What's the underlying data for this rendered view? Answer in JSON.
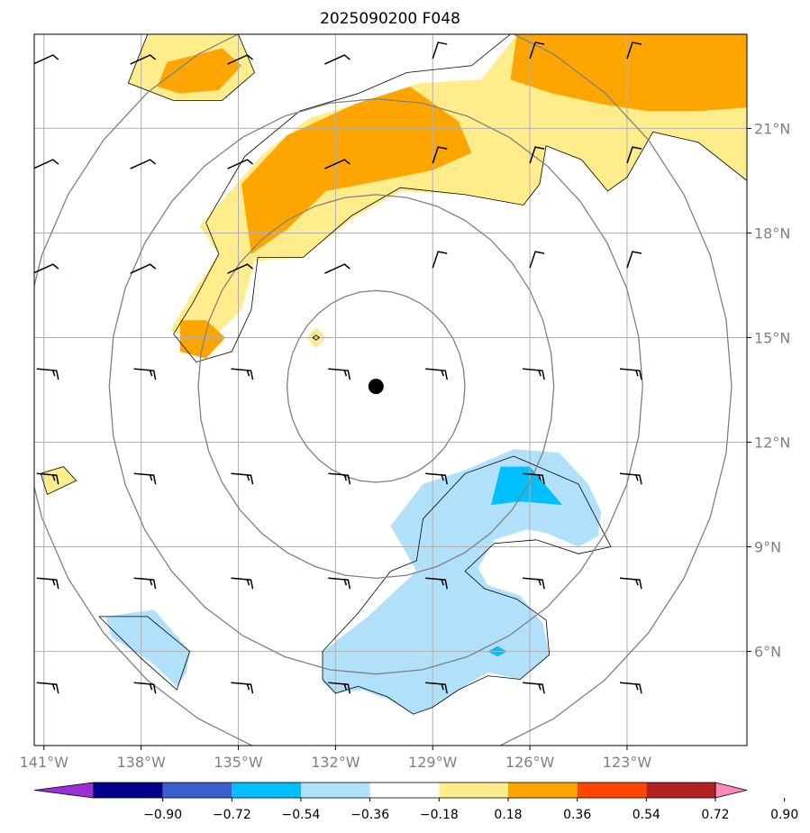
{
  "chart_data": {
    "type": "contour-map",
    "title": "2025090200 F048",
    "xlim": [
      -141.3,
      -119.3
    ],
    "ylim": [
      3.3,
      23.7
    ],
    "x_ticks": [
      {
        "value": -141,
        "label": "141°W"
      },
      {
        "value": -138,
        "label": "138°W"
      },
      {
        "value": -135,
        "label": "135°W"
      },
      {
        "value": -132,
        "label": "132°W"
      },
      {
        "value": -129,
        "label": "129°W"
      },
      {
        "value": -126,
        "label": "126°W"
      },
      {
        "value": -123,
        "label": "123°W"
      }
    ],
    "y_ticks": [
      {
        "value": 6,
        "label": "6°N"
      },
      {
        "value": 9,
        "label": "9°N"
      },
      {
        "value": 12,
        "label": "12°N"
      },
      {
        "value": 15,
        "label": "15°N"
      },
      {
        "value": 18,
        "label": "18°N"
      },
      {
        "value": 21,
        "label": "21°N"
      }
    ],
    "grid": true,
    "center": {
      "lon": -130.75,
      "lat": 13.6
    },
    "range_rings_deg": [
      2.75,
      5.5,
      8.25,
      11.0
    ],
    "colorbar": {
      "levels": [
        -0.9,
        -0.72,
        -0.54,
        -0.36,
        -0.18,
        0.18,
        0.36,
        0.54,
        0.72,
        0.9
      ],
      "labels": [
        "−0.90",
        "−0.72",
        "−0.54",
        "−0.36",
        "−0.18",
        "0.18",
        "0.36",
        "0.54",
        "0.72",
        "0.90"
      ],
      "colors": [
        "#9b30d9",
        "#00008b",
        "#3a5fcd",
        "#00bfff",
        "#b0e0fa",
        "#ffffff",
        "#ffec8b",
        "#ffa500",
        "#ff4500",
        "#b22222",
        "#ff88b8"
      ],
      "extend": "both"
    },
    "filled_regions": [
      {
        "level": 0.18,
        "color": "#ffec8b",
        "points": [
          [
            -137.8,
            23.7
          ],
          [
            -135.0,
            23.7
          ],
          [
            -134.5,
            22.6
          ],
          [
            -135.5,
            21.8
          ],
          [
            -137.0,
            21.8
          ],
          [
            -138.4,
            22.3
          ]
        ]
      },
      {
        "level": 0.36,
        "color": "#ffa500",
        "points": [
          [
            -137.2,
            22.9
          ],
          [
            -135.5,
            23.3
          ],
          [
            -134.9,
            22.8
          ],
          [
            -135.6,
            22.1
          ],
          [
            -136.8,
            22.0
          ],
          [
            -137.5,
            22.2
          ]
        ]
      },
      {
        "level": 0.18,
        "color": "#ffec8b",
        "points": [
          [
            -136.2,
            18.2
          ],
          [
            -134.2,
            20.3
          ],
          [
            -132.8,
            21.3
          ],
          [
            -131.0,
            21.8
          ],
          [
            -129.4,
            22.3
          ],
          [
            -127.5,
            22.4
          ],
          [
            -126.4,
            23.7
          ],
          [
            -119.3,
            23.7
          ],
          [
            -119.3,
            19.5
          ],
          [
            -120.8,
            20.6
          ],
          [
            -122.2,
            20.9
          ],
          [
            -123.0,
            19.6
          ],
          [
            -123.6,
            19.2
          ],
          [
            -124.4,
            20.1
          ],
          [
            -125.5,
            20.5
          ],
          [
            -125.7,
            19.4
          ],
          [
            -126.2,
            18.8
          ],
          [
            -128.0,
            19.1
          ],
          [
            -130.0,
            19.2
          ],
          [
            -131.5,
            18.4
          ],
          [
            -133.0,
            17.3
          ],
          [
            -134.5,
            17.2
          ],
          [
            -134.9,
            15.8
          ],
          [
            -136.0,
            14.8
          ],
          [
            -137.1,
            15.2
          ],
          [
            -136.4,
            16.3
          ],
          [
            -135.6,
            17.4
          ]
        ]
      },
      {
        "level": 0.36,
        "color": "#ffa500",
        "points": [
          [
            -134.9,
            19.4
          ],
          [
            -133.5,
            20.8
          ],
          [
            -131.4,
            21.7
          ],
          [
            -129.7,
            22.2
          ],
          [
            -128.2,
            21.2
          ],
          [
            -127.8,
            20.3
          ],
          [
            -129.0,
            19.8
          ],
          [
            -130.6,
            19.5
          ],
          [
            -132.3,
            19.2
          ],
          [
            -133.5,
            18.1
          ],
          [
            -134.6,
            17.4
          ]
        ]
      },
      {
        "level": 0.36,
        "color": "#ffa500",
        "points": [
          [
            -126.4,
            23.7
          ],
          [
            -119.3,
            23.7
          ],
          [
            -119.3,
            21.6
          ],
          [
            -120.8,
            21.5
          ],
          [
            -122.4,
            21.5
          ],
          [
            -123.8,
            21.7
          ],
          [
            -125.3,
            22.0
          ],
          [
            -126.6,
            22.4
          ]
        ]
      },
      {
        "level": 0.36,
        "color": "#ffa500",
        "points": [
          [
            -136.8,
            15.5
          ],
          [
            -136.0,
            15.5
          ],
          [
            -135.4,
            15.0
          ],
          [
            -136.0,
            14.4
          ],
          [
            -136.8,
            14.6
          ]
        ]
      },
      {
        "level": 0.18,
        "color": "#ffec8b",
        "points": [
          [
            -132.9,
            15.0
          ],
          [
            -132.6,
            15.3
          ],
          [
            -132.3,
            15.0
          ],
          [
            -132.6,
            14.7
          ]
        ]
      },
      {
        "level": 0.18,
        "color": "#ffec8b",
        "points": [
          [
            -141.1,
            11.1
          ],
          [
            -140.4,
            11.3
          ],
          [
            -140.0,
            10.9
          ],
          [
            -140.9,
            10.5
          ]
        ]
      },
      {
        "level": -0.18,
        "color": "#b0e0fa",
        "points": [
          [
            -132.4,
            6.0
          ],
          [
            -131.0,
            7.0
          ],
          [
            -129.5,
            8.3
          ],
          [
            -130.3,
            9.6
          ],
          [
            -129.3,
            10.8
          ],
          [
            -128.0,
            11.2
          ],
          [
            -126.5,
            11.8
          ],
          [
            -125.1,
            11.7
          ],
          [
            -124.2,
            10.8
          ],
          [
            -123.8,
            10.0
          ],
          [
            -123.9,
            9.3
          ],
          [
            -124.5,
            9.0
          ],
          [
            -125.5,
            9.4
          ],
          [
            -126.1,
            9.5
          ],
          [
            -127.1,
            9.2
          ],
          [
            -127.6,
            8.4
          ],
          [
            -127.3,
            7.9
          ],
          [
            -126.3,
            7.6
          ],
          [
            -125.6,
            6.8
          ],
          [
            -125.4,
            5.9
          ],
          [
            -126.3,
            5.2
          ],
          [
            -127.3,
            5.4
          ],
          [
            -128.2,
            4.9
          ],
          [
            -129.0,
            4.4
          ],
          [
            -129.6,
            4.2
          ],
          [
            -130.3,
            4.6
          ],
          [
            -131.2,
            4.9
          ],
          [
            -132.0,
            4.8
          ],
          [
            -132.4,
            5.1
          ]
        ]
      },
      {
        "level": -0.36,
        "color": "#00bfff",
        "points": [
          [
            -126.9,
            11.3
          ],
          [
            -126.0,
            11.3
          ],
          [
            -125.0,
            10.2
          ],
          [
            -126.3,
            10.3
          ],
          [
            -127.2,
            10.2
          ]
        ]
      },
      {
        "level": -0.36,
        "color": "#00bfff",
        "points": [
          [
            -127.3,
            6.0
          ],
          [
            -127.0,
            6.15
          ],
          [
            -126.7,
            6.0
          ],
          [
            -127.0,
            5.85
          ]
        ]
      },
      {
        "level": -0.18,
        "color": "#b0e0fa",
        "points": [
          [
            -139.1,
            7.0
          ],
          [
            -137.6,
            7.2
          ],
          [
            -136.5,
            6.0
          ],
          [
            -136.6,
            5.4
          ],
          [
            -136.9,
            5.0
          ],
          [
            -137.7,
            5.7
          ],
          [
            -138.9,
            6.4
          ]
        ]
      }
    ],
    "contour_lines": [
      [
        [
          -137.8,
          23.7
        ],
        [
          -135.0,
          23.7
        ],
        [
          -134.5,
          22.6
        ],
        [
          -135.5,
          21.8
        ],
        [
          -137.0,
          21.8
        ],
        [
          -138.4,
          22.3
        ],
        [
          -137.8,
          23.7
        ]
      ],
      [
        [
          -136.0,
          18.3
        ],
        [
          -134.8,
          20.2
        ],
        [
          -133.1,
          21.5
        ],
        [
          -131.3,
          22.0
        ],
        [
          -129.8,
          22.6
        ],
        [
          -127.8,
          22.8
        ],
        [
          -126.6,
          23.7
        ]
      ],
      [
        [
          -119.3,
          19.5
        ],
        [
          -120.8,
          20.6
        ],
        [
          -122.2,
          20.9
        ],
        [
          -123.0,
          19.6
        ],
        [
          -123.6,
          19.2
        ],
        [
          -124.4,
          20.1
        ],
        [
          -125.5,
          20.5
        ],
        [
          -125.7,
          19.4
        ],
        [
          -126.2,
          18.8
        ],
        [
          -128.0,
          19.1
        ],
        [
          -130.0,
          19.3
        ],
        [
          -131.5,
          18.5
        ],
        [
          -133.0,
          17.3
        ],
        [
          -134.4,
          17.3
        ],
        [
          -134.6,
          15.8
        ],
        [
          -135.2,
          14.6
        ],
        [
          -136.3,
          14.3
        ],
        [
          -137.0,
          15.1
        ],
        [
          -136.4,
          16.0
        ],
        [
          -135.6,
          17.4
        ],
        [
          -136.0,
          18.3
        ]
      ],
      [
        [
          -141.1,
          11.1
        ],
        [
          -140.4,
          11.3
        ],
        [
          -140.0,
          10.9
        ],
        [
          -140.9,
          10.5
        ],
        [
          -141.1,
          11.1
        ]
      ],
      [
        [
          -132.7,
          15.0
        ],
        [
          -132.6,
          15.07
        ],
        [
          -132.5,
          15.0
        ],
        [
          -132.6,
          14.93
        ],
        [
          -132.7,
          15.0
        ]
      ],
      [
        [
          -130.3,
          8.3
        ],
        [
          -129.5,
          8.6
        ],
        [
          -129.3,
          9.8
        ],
        [
          -128.0,
          11.1
        ],
        [
          -126.5,
          11.6
        ],
        [
          -124.5,
          10.8
        ],
        [
          -123.5,
          9.0
        ],
        [
          -124.5,
          8.8
        ],
        [
          -125.8,
          9.2
        ],
        [
          -127.1,
          9.1
        ],
        [
          -128.0,
          8.3
        ],
        [
          -127.4,
          7.8
        ],
        [
          -126.4,
          7.5
        ],
        [
          -125.5,
          6.9
        ],
        [
          -125.4,
          5.9
        ],
        [
          -126.3,
          5.2
        ],
        [
          -127.3,
          5.3
        ],
        [
          -128.2,
          4.9
        ],
        [
          -129.0,
          4.4
        ],
        [
          -129.6,
          4.2
        ],
        [
          -130.4,
          4.7
        ],
        [
          -131.3,
          5.0
        ],
        [
          -132.0,
          4.8
        ],
        [
          -132.4,
          5.2
        ],
        [
          -132.4,
          6.0
        ],
        [
          -131.3,
          7.1
        ],
        [
          -130.3,
          8.3
        ]
      ],
      [
        [
          -139.3,
          7.0
        ],
        [
          -137.8,
          7.0
        ],
        [
          -136.5,
          6.0
        ],
        [
          -136.9,
          4.9
        ],
        [
          -138.0,
          5.8
        ],
        [
          -139.3,
          7.0
        ]
      ]
    ],
    "wind_barbs": {
      "lons": [
        -141,
        -138,
        -135,
        -132,
        -129,
        -126,
        -123
      ],
      "lats": [
        5,
        8,
        11,
        14,
        17,
        20,
        23
      ],
      "markers": [
        {
          "lon": -130.75,
          "lat": 13.6,
          "shape": "filled-circle"
        }
      ]
    }
  }
}
